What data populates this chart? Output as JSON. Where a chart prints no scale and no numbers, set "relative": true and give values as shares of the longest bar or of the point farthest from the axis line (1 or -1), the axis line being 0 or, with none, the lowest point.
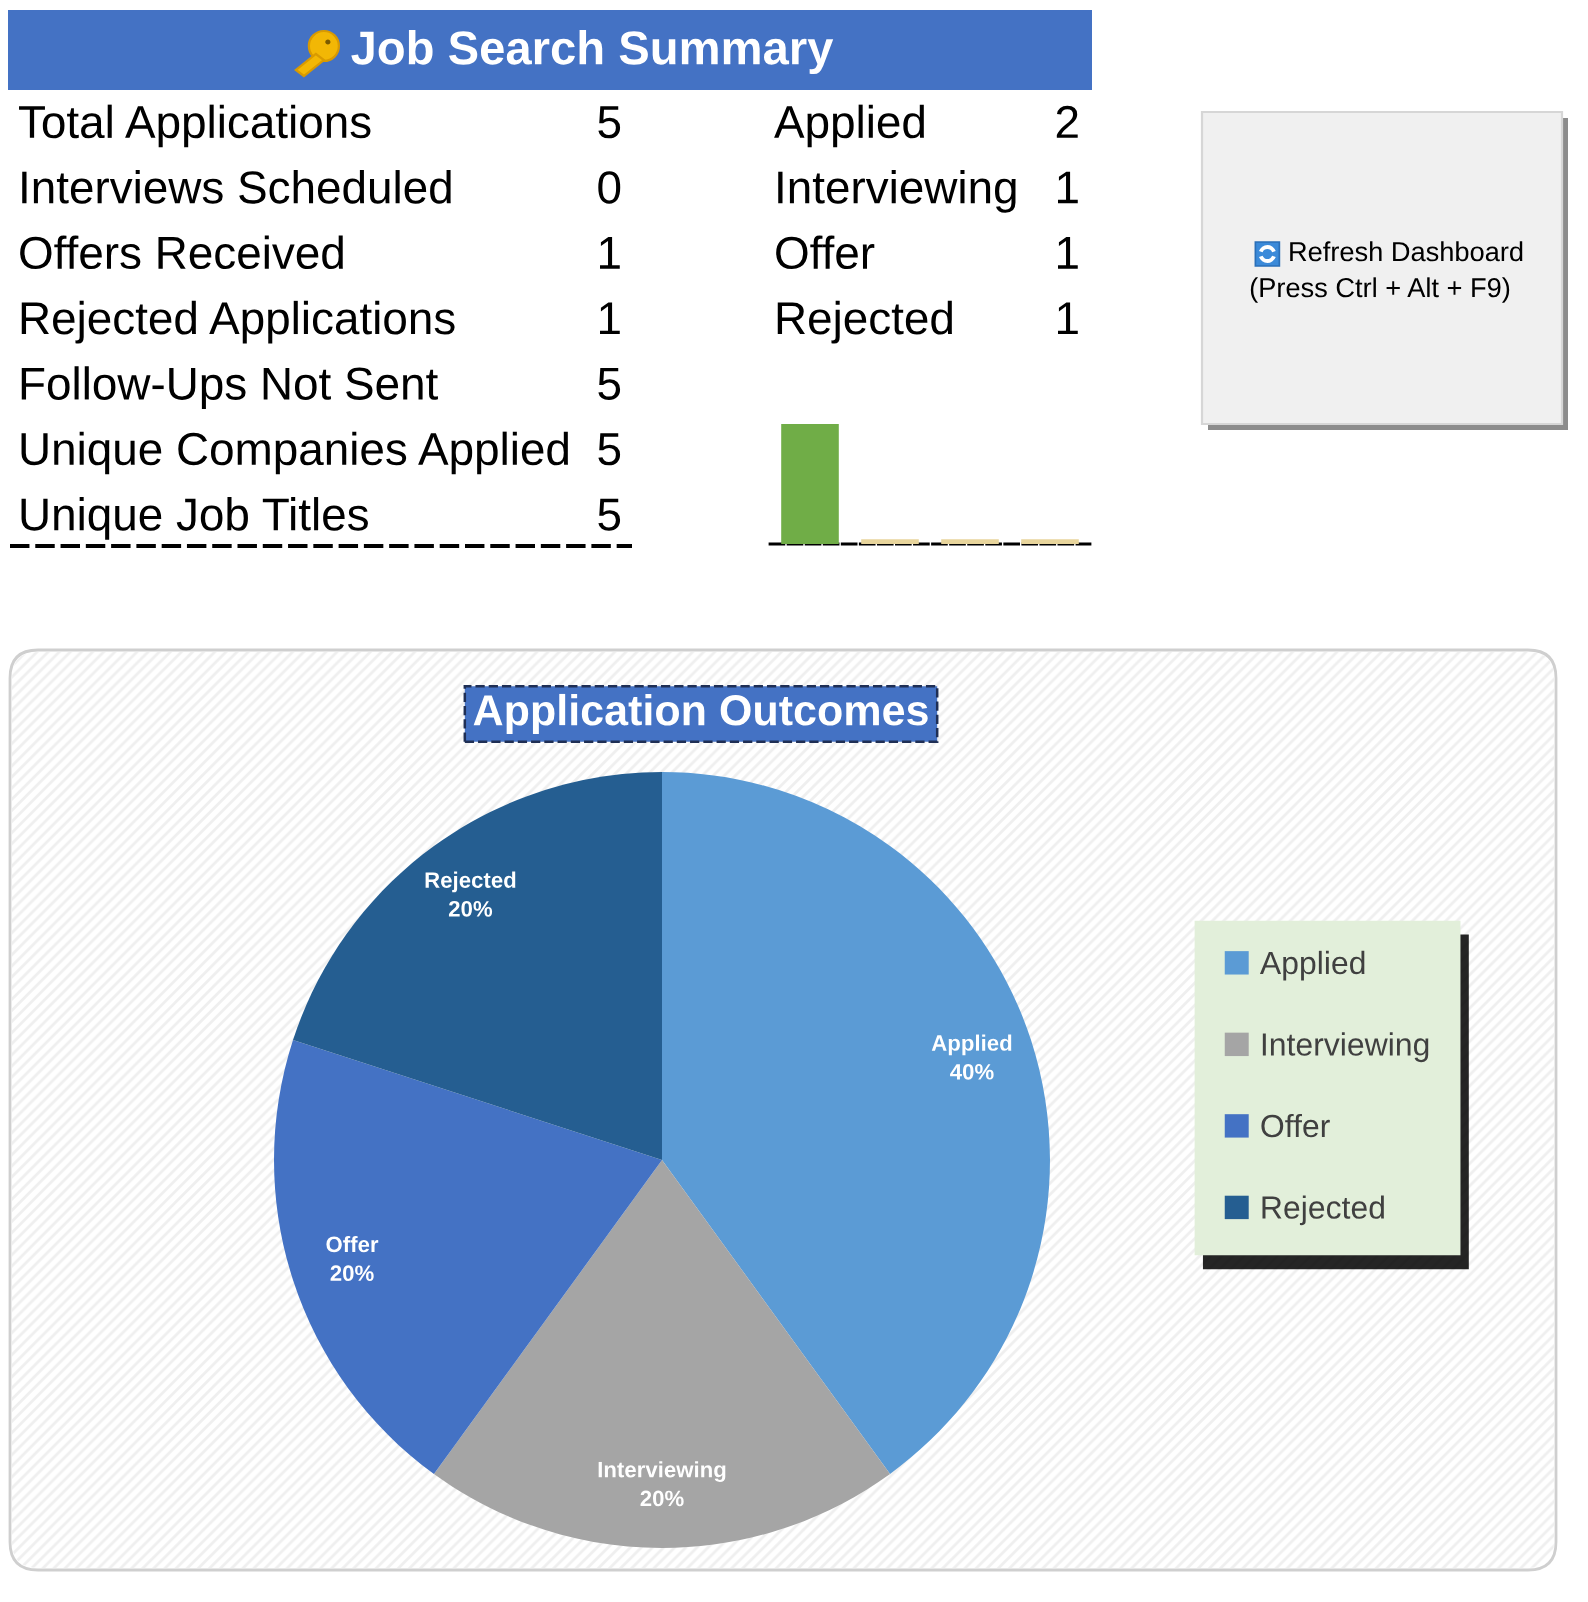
{
  "chart_data": [
    {
      "type": "other",
      "title": "Job Search Summary",
      "categories": [
        "Total Applications",
        "Interviews Scheduled",
        "Offers Received",
        "Rejected Applications",
        "Follow-Ups Not Sent",
        "Unique Companies Applied",
        "Unique Job Titles"
      ],
      "values": [
        5,
        0,
        1,
        1,
        5,
        5,
        5
      ],
      "data_labels": true
    },
    {
      "type": "other",
      "categories": [
        "Applied",
        "Interviewing",
        "Offer",
        "Rejected"
      ],
      "values": [
        2,
        1,
        1,
        1
      ],
      "data_labels": true
    },
    {
      "type": "bar",
      "categories": [
        null,
        null,
        null,
        null
      ],
      "values": [
        1,
        0.04,
        0.04,
        0.04
      ],
      "colors": [
        "#70ad47",
        "#e8d59c",
        "#e8d59c",
        "#e8d59c"
      ],
      "relative": true
    },
    {
      "type": "other",
      "annotations": [
        "Refresh Dashboard",
        "(Press Ctrl + Alt + F9)"
      ]
    },
    {
      "type": "pie",
      "title": "Application Outcomes",
      "categories": [
        "Applied",
        "Interviewing",
        "Offer",
        "Rejected"
      ],
      "values": [
        40,
        20,
        20,
        20
      ],
      "colors": [
        "#5b9bd5",
        "#a5a5a5",
        "#4472c4",
        "#255e91"
      ],
      "value_labels": [
        "40%",
        "20%",
        "20%",
        "20%"
      ],
      "legend": "right"
    }
  ]
}
